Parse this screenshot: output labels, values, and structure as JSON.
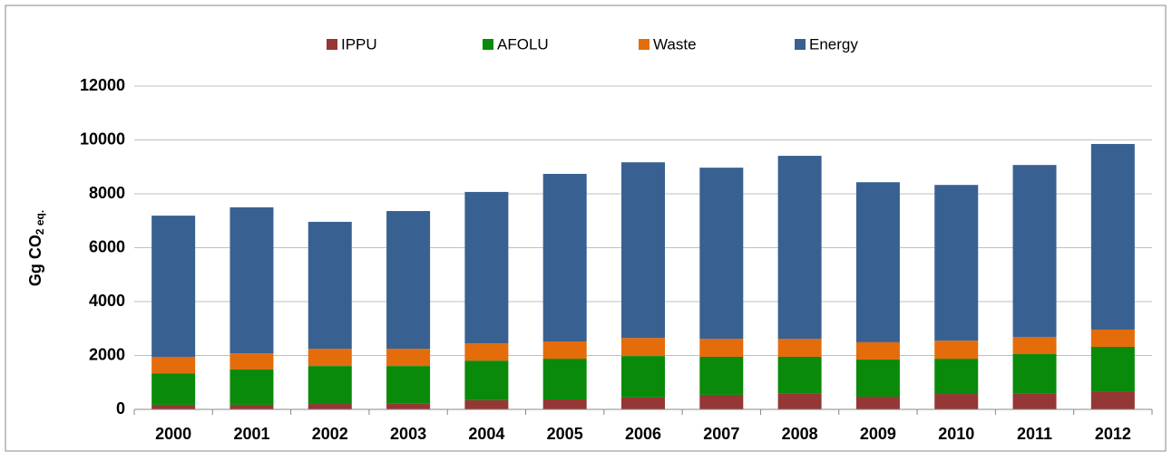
{
  "chart_data": {
    "type": "stacked_bar",
    "ylabel_parts": [
      "Gg CO",
      "2 eq."
    ],
    "categories": [
      "2000",
      "2001",
      "2002",
      "2003",
      "2004",
      "2005",
      "2006",
      "2007",
      "2008",
      "2009",
      "2010",
      "2011",
      "2012"
    ],
    "series": [
      {
        "name": "IPPU",
        "color": "#953735",
        "values": [
          170,
          170,
          200,
          230,
          340,
          370,
          440,
          540,
          600,
          470,
          570,
          600,
          670
        ]
      },
      {
        "name": "AFOLU",
        "color": "#0a8a0a",
        "values": [
          1170,
          1310,
          1410,
          1380,
          1470,
          1510,
          1540,
          1410,
          1350,
          1380,
          1310,
          1450,
          1650
        ]
      },
      {
        "name": "Waste",
        "color": "#e46c0a",
        "values": [
          610,
          600,
          640,
          640,
          640,
          640,
          670,
          670,
          670,
          640,
          670,
          640,
          640
        ]
      },
      {
        "name": "Energy",
        "color": "#386192",
        "values": [
          5240,
          5420,
          4710,
          5110,
          5620,
          6220,
          6520,
          6350,
          6790,
          5940,
          5780,
          6380,
          6890
        ]
      }
    ],
    "ylim": [
      0,
      12000
    ],
    "yticks": [
      0,
      2000,
      4000,
      6000,
      8000,
      10000,
      12000
    ],
    "grid": true,
    "legend": "top"
  }
}
